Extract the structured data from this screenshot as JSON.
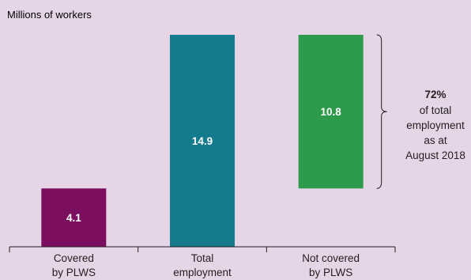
{
  "chart_data": {
    "type": "bar",
    "ylabel": "Millions of workers",
    "categories": [
      [
        "Covered",
        "by PLWS"
      ],
      [
        "Total",
        "employment"
      ],
      [
        "Not covered",
        "by PLWS"
      ]
    ],
    "values": [
      4.1,
      14.9,
      10.8
    ],
    "value_labels": [
      "4.1",
      "14.9",
      "10.8"
    ],
    "bar_colors": [
      "#7b0e5f",
      "#137b8c",
      "#2e9a4b"
    ],
    "floating_bar_index": 2,
    "ylim": [
      0,
      14.9
    ],
    "annotation": {
      "percent": "72%",
      "lines": [
        "of total",
        "employment",
        "as at",
        "August 2018"
      ]
    }
  },
  "colors": {
    "background": "#e6d5e6",
    "axis": "#231f20"
  }
}
